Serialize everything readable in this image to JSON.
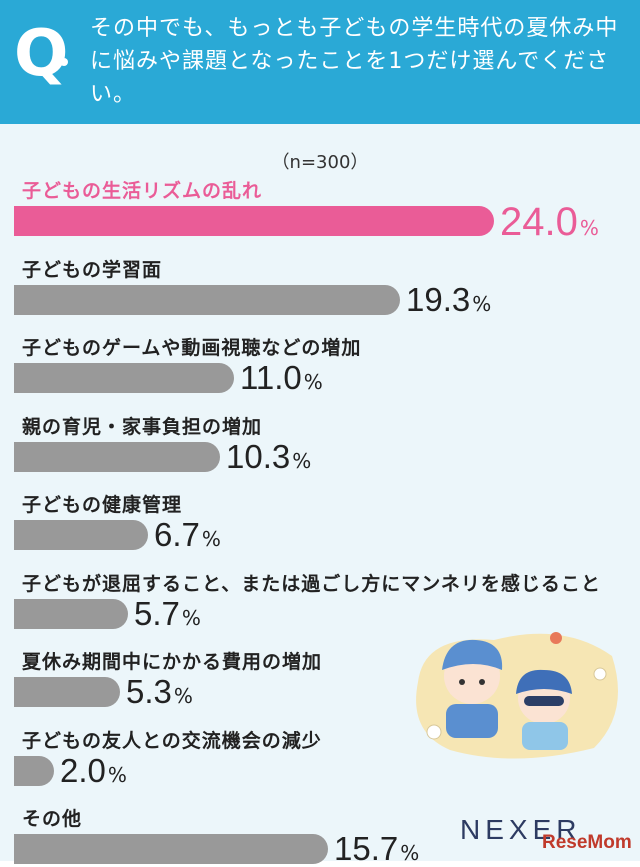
{
  "header": {
    "q_mark": "Q",
    "question": "その中でも、もっとも子どもの学生時代の夏休み中に悩みや課題となったことを1つだけ選んでください。"
  },
  "chart_data": {
    "type": "bar",
    "orientation": "horizontal",
    "sample_size": "（n=300）",
    "unit": "%",
    "categories": [
      "子どもの生活リズムの乱れ",
      "子どもの学習面",
      "子どものゲームや動画視聴などの増加",
      "親の育児・家事負担の増加",
      "子どもの健康管理",
      "子どもが退屈すること、または過ごし方にマンネリを感じること",
      "夏休み期間中にかかる費用の増加",
      "子どもの友人との交流機会の減少",
      "その他"
    ],
    "values": [
      24.0,
      19.3,
      11.0,
      10.3,
      6.7,
      5.7,
      5.3,
      2.0,
      15.7
    ],
    "value_labels": [
      "24.0",
      "19.3",
      "11.0",
      "10.3",
      "6.7",
      "5.7",
      "5.3",
      "2.0",
      "15.7"
    ],
    "highlight_index": 0,
    "colors": {
      "highlight": "#ea5c97",
      "default": "#999999",
      "header": "#2aa9d6",
      "panel": "#ecf6fa"
    }
  },
  "branding": {
    "logo": "NEXER",
    "watermark": "ReseMom"
  }
}
